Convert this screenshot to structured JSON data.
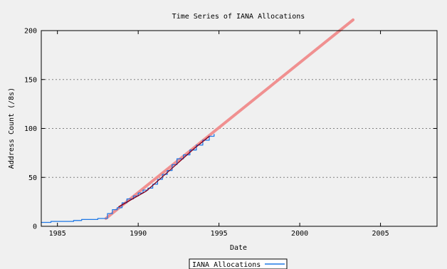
{
  "chart_data": {
    "type": "line",
    "title": "Time Series of IANA Allocations",
    "xlabel": "Date",
    "ylabel": "Address Count (/8s)",
    "xlim": [
      1984,
      2008.5
    ],
    "ylim": [
      0,
      200
    ],
    "xticks": [
      1985,
      1990,
      1995,
      2000,
      2005
    ],
    "yticks": [
      0,
      50,
      100,
      150,
      200
    ],
    "grid": "horizontal-dotted",
    "legend": {
      "position": "bottom-center",
      "entries": [
        "IANA Allocations"
      ]
    },
    "series": [
      {
        "name": "IANA Allocations",
        "color": "#1e78e6",
        "style": "step",
        "points": [
          [
            1984.0,
            4
          ],
          [
            1984.6,
            5
          ],
          [
            1985.0,
            5
          ],
          [
            1985.5,
            5
          ],
          [
            1986.0,
            6
          ],
          [
            1986.5,
            7
          ],
          [
            1987.0,
            7
          ],
          [
            1987.5,
            8
          ],
          [
            1988.0,
            8
          ],
          [
            1988.1,
            13
          ],
          [
            1988.4,
            17
          ],
          [
            1988.7,
            19
          ],
          [
            1989.0,
            24
          ],
          [
            1989.3,
            28
          ],
          [
            1989.7,
            31
          ],
          [
            1990.0,
            34
          ],
          [
            1990.3,
            37
          ],
          [
            1990.6,
            39
          ],
          [
            1990.9,
            43
          ],
          [
            1991.2,
            48
          ],
          [
            1991.5,
            53
          ],
          [
            1991.8,
            57
          ],
          [
            1992.1,
            63
          ],
          [
            1992.4,
            69
          ],
          [
            1992.8,
            73
          ],
          [
            1993.2,
            78
          ],
          [
            1993.6,
            83
          ],
          [
            1994.0,
            88
          ],
          [
            1994.4,
            92
          ],
          [
            1994.7,
            94
          ]
        ]
      },
      {
        "color": "#f09090",
        "style": "line",
        "points": [
          [
            1988.0,
            8
          ],
          [
            2003.3,
            211
          ]
        ]
      },
      {
        "color": "#800020",
        "style": "line",
        "points": [
          [
            1988.8,
            20
          ],
          [
            1990.5,
            36
          ],
          [
            1992.0,
            58
          ],
          [
            1993.5,
            80
          ],
          [
            1994.4,
            92
          ]
        ]
      }
    ]
  }
}
